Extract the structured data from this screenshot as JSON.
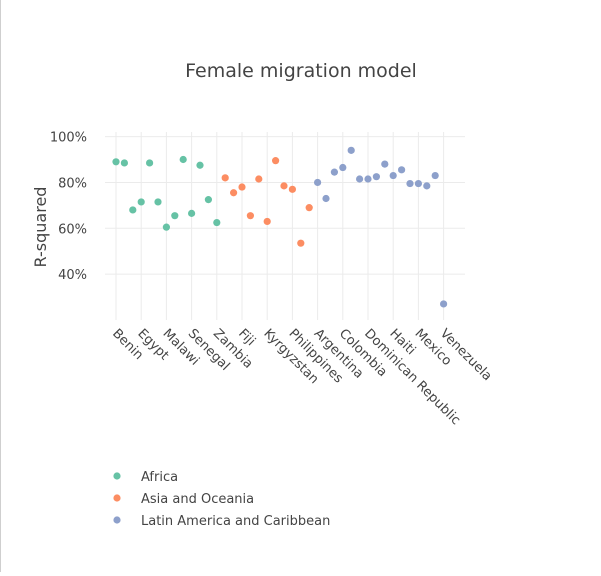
{
  "chart_data": {
    "type": "scatter",
    "title": "Female migration model",
    "ylabel": "R-squared",
    "xlabel": "",
    "ylim": [
      0.2,
      1.02
    ],
    "yticks": [
      {
        "value": 0.4,
        "label": "40%"
      },
      {
        "value": 0.6,
        "label": "60%"
      },
      {
        "value": 0.8,
        "label": "80%"
      },
      {
        "value": 1.0,
        "label": "100%"
      }
    ],
    "xtick_labels": [
      "Benin",
      "Egypt",
      "Malawi",
      "Senegal",
      "Zambia",
      "Fiji",
      "Kyrgyzstan",
      "Philippines",
      "Argentina",
      "Colombia",
      "Dominican Republic",
      "Haiti",
      "Mexico",
      "Venezuela"
    ],
    "grid": true,
    "legend_position": "bottom-left",
    "series": [
      {
        "name": "Africa",
        "color": "#66c2a5",
        "values": [
          0.89,
          0.885,
          0.68,
          0.715,
          0.885,
          0.715,
          0.605,
          0.655,
          0.9,
          0.665,
          0.875,
          0.725,
          0.625
        ]
      },
      {
        "name": "Asia and Oceania",
        "color": "#fc8d62",
        "values": [
          0.82,
          0.755,
          0.78,
          0.655,
          0.815,
          0.63,
          0.895,
          0.785,
          0.77,
          0.535,
          0.69
        ]
      },
      {
        "name": "Latin America and Caribbean",
        "color": "#8da0cb",
        "values": [
          0.8,
          0.73,
          0.845,
          0.865,
          0.94,
          0.815,
          0.815,
          0.825,
          0.88,
          0.83,
          0.855,
          0.795,
          0.795,
          0.785,
          0.83,
          0.27
        ]
      }
    ]
  }
}
